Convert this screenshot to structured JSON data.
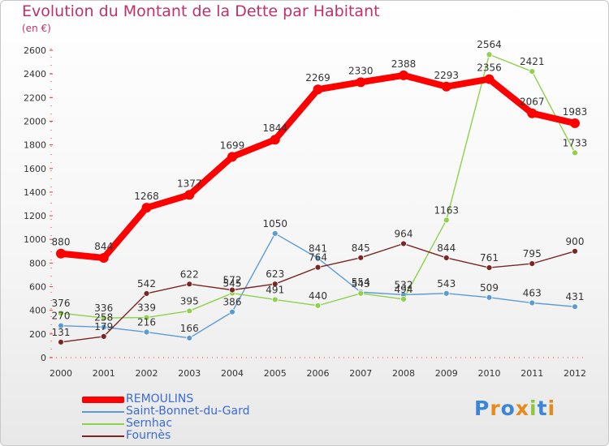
{
  "header": {
    "title": "Evolution du Montant de la Dette par Habitant",
    "unit": "(en €)"
  },
  "chart_data": {
    "type": "line",
    "title": "Evolution du Montant de la Dette par Habitant",
    "subtitle": "(en €)",
    "x": [
      "2000",
      "2001",
      "2002",
      "2003",
      "2004",
      "2005",
      "2006",
      "2007",
      "2008",
      "2009",
      "2010",
      "2011",
      "2012"
    ],
    "ylim": [
      0,
      2600
    ],
    "yticks": [
      0,
      200,
      400,
      600,
      800,
      1000,
      1200,
      1400,
      1600,
      1800,
      2000,
      2200,
      2400,
      2600
    ],
    "grid": false,
    "legend_position": "bottom-left",
    "series": [
      {
        "name": "REMOULINS",
        "color": "#ff0000",
        "values": [
          880,
          844,
          1268,
          1377,
          1699,
          1844,
          2269,
          2330,
          2388,
          2293,
          2356,
          2067,
          1983
        ]
      },
      {
        "name": "Saint-Bonnet-du-Gard",
        "color": "#5b9bd5",
        "values": [
          270,
          258,
          216,
          166,
          386,
          1050,
          841,
          554,
          532,
          543,
          509,
          463,
          431
        ]
      },
      {
        "name": "Sernhac",
        "color": "#8ed14b",
        "values": [
          376,
          336,
          339,
          395,
          545,
          491,
          440,
          543,
          494,
          1163,
          2564,
          2421,
          1733
        ]
      },
      {
        "name": "Fournès",
        "color": "#7b2525",
        "values": [
          131,
          179,
          542,
          622,
          572,
          623,
          764,
          845,
          964,
          844,
          761,
          795,
          900
        ]
      }
    ]
  },
  "logo": {
    "letters": [
      "P",
      "r",
      "o",
      "x",
      "i",
      "t",
      "i"
    ],
    "colors": [
      "#3a86d4",
      "#e88a1a",
      "#3a86d4",
      "#e88a1a",
      "#8ec63f",
      "#3a86d4",
      "#e88a1a"
    ]
  }
}
